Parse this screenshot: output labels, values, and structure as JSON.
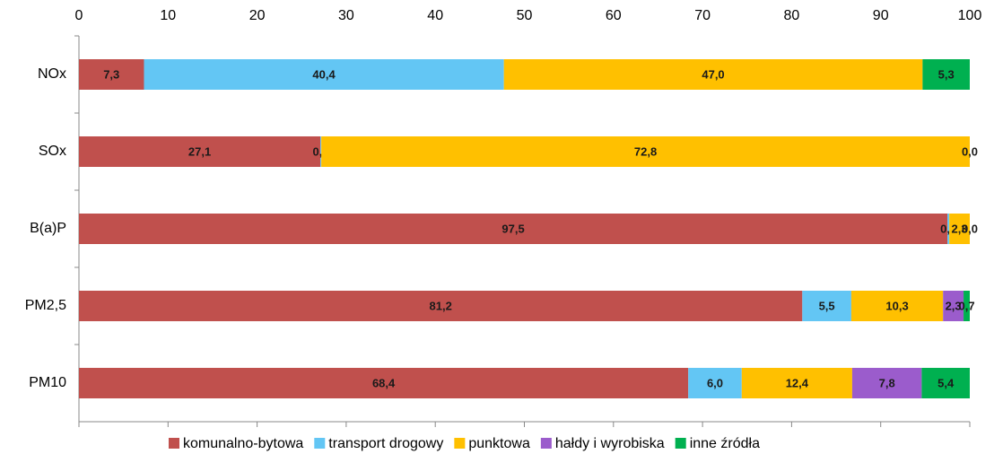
{
  "chart_data": {
    "type": "stacked-bar-horizontal",
    "categories": [
      "NOx",
      "SOx",
      "B(a)P",
      "PM2,5",
      "PM10"
    ],
    "xlim": [
      0,
      100
    ],
    "xticks": [
      0,
      10,
      20,
      30,
      40,
      50,
      60,
      70,
      80,
      90,
      100
    ],
    "legend": "bottom",
    "series": [
      {
        "name": "komunalno-bytowa",
        "color": "#c0504d",
        "values": [
          7.3,
          27.1,
          97.5,
          81.2,
          68.4
        ],
        "value_labels": [
          "7,3",
          "27,1",
          "97,5",
          "81,2",
          "68,4"
        ]
      },
      {
        "name": "transport drogowy",
        "color": "#63c6f4",
        "values": [
          40.4,
          0.1,
          0.2,
          5.5,
          6.0
        ],
        "value_labels": [
          "40,4",
          "0,1",
          "0,2",
          "5,5",
          "6,0"
        ]
      },
      {
        "name": "punktowa",
        "color": "#ffc000",
        "values": [
          47.0,
          72.8,
          2.3,
          10.3,
          12.4
        ],
        "value_labels": [
          "47,0",
          "72,8",
          "2,3",
          "10,3",
          "12,4"
        ]
      },
      {
        "name": "hałdy i wyrobiska",
        "color": "#9b5ccc",
        "values": [
          null,
          null,
          null,
          2.3,
          7.8
        ],
        "value_labels": [
          null,
          null,
          null,
          "2,3",
          "7,8"
        ]
      },
      {
        "name": "inne źródła",
        "color": "#00b050",
        "values": [
          5.3,
          0.0,
          0.0,
          0.7,
          5.4
        ],
        "value_labels": [
          "5,3",
          "0,0",
          "0,0",
          "0,7",
          "5,4"
        ]
      }
    ]
  }
}
